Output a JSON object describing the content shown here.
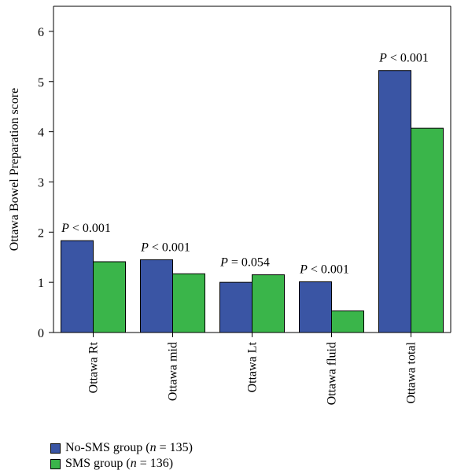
{
  "chart_data": {
    "type": "bar",
    "ylabel": "Ottawa Bowel Preparation score",
    "ylim": [
      0,
      6.5
    ],
    "yticks": [
      0,
      1,
      2,
      3,
      4,
      5,
      6
    ],
    "categories": [
      "Ottawa Rt",
      "Ottawa mid",
      "Ottawa Lt",
      "Ottawa fluid",
      "Ottawa total"
    ],
    "series": [
      {
        "name": "No-SMS group (n = 135)",
        "color": "#3a55a4",
        "values": [
          1.83,
          1.45,
          1.0,
          1.01,
          5.22
        ]
      },
      {
        "name": "SMS group (n = 136)",
        "color": "#3ab54a",
        "values": [
          1.41,
          1.17,
          1.15,
          0.43,
          4.07
        ]
      }
    ],
    "annotations": [
      {
        "category": "Ottawa Rt",
        "text": "P < 0.001"
      },
      {
        "category": "Ottawa mid",
        "text": "P < 0.001"
      },
      {
        "category": "Ottawa Lt",
        "text": "P = 0.054"
      },
      {
        "category": "Ottawa fluid",
        "text": "P < 0.001"
      },
      {
        "category": "Ottawa total",
        "text": "P < 0.001"
      }
    ],
    "legend_position": "bottom-left"
  }
}
